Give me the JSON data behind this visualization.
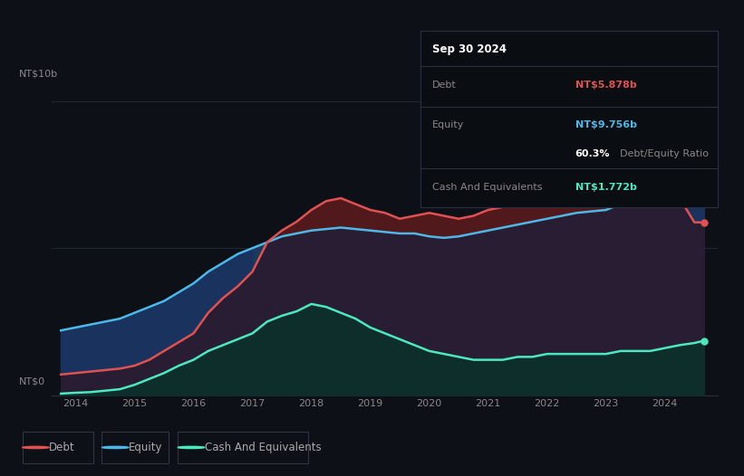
{
  "background_color": "#0d1117",
  "debt_color": "#e05252",
  "equity_color": "#4db8e8",
  "cash_color": "#4de8c0",
  "ylabel": "NT$10b",
  "y0label": "NT$0",
  "ylim": [
    0,
    11.5
  ],
  "tooltip_title": "Sep 30 2024",
  "tooltip_debt_label": "Debt",
  "tooltip_debt_value": "NT$5.878b",
  "tooltip_equity_label": "Equity",
  "tooltip_equity_value": "NT$9.756b",
  "tooltip_ratio": "60.3%",
  "tooltip_ratio_label": "Debt/Equity Ratio",
  "tooltip_cash_label": "Cash And Equivalents",
  "tooltip_cash_value": "NT$1.772b",
  "years": [
    2013.75,
    2014.0,
    2014.25,
    2014.5,
    2014.75,
    2015.0,
    2015.25,
    2015.5,
    2015.75,
    2016.0,
    2016.25,
    2016.5,
    2016.75,
    2017.0,
    2017.25,
    2017.5,
    2017.75,
    2018.0,
    2018.25,
    2018.5,
    2018.75,
    2019.0,
    2019.25,
    2019.5,
    2019.75,
    2020.0,
    2020.25,
    2020.5,
    2020.75,
    2021.0,
    2021.25,
    2021.5,
    2021.75,
    2022.0,
    2022.25,
    2022.5,
    2022.75,
    2023.0,
    2023.25,
    2023.5,
    2023.75,
    2024.0,
    2024.25,
    2024.5,
    2024.66
  ],
  "equity": [
    2.2,
    2.3,
    2.4,
    2.5,
    2.6,
    2.8,
    3.0,
    3.2,
    3.5,
    3.8,
    4.2,
    4.5,
    4.8,
    5.0,
    5.2,
    5.4,
    5.5,
    5.6,
    5.65,
    5.7,
    5.65,
    5.6,
    5.55,
    5.5,
    5.5,
    5.4,
    5.35,
    5.4,
    5.5,
    5.6,
    5.7,
    5.8,
    5.9,
    6.0,
    6.1,
    6.2,
    6.25,
    6.3,
    6.5,
    6.7,
    6.9,
    7.2,
    7.5,
    9.756,
    10.9
  ],
  "debt": [
    0.7,
    0.75,
    0.8,
    0.85,
    0.9,
    1.0,
    1.2,
    1.5,
    1.8,
    2.1,
    2.8,
    3.3,
    3.7,
    4.2,
    5.2,
    5.6,
    5.9,
    6.3,
    6.6,
    6.7,
    6.5,
    6.3,
    6.2,
    6.0,
    6.1,
    6.2,
    6.1,
    6.0,
    6.1,
    6.3,
    6.4,
    6.5,
    6.6,
    6.7,
    6.8,
    6.9,
    6.8,
    6.7,
    6.9,
    7.0,
    7.0,
    6.8,
    6.7,
    5.878,
    5.878
  ],
  "cash": [
    0.05,
    0.08,
    0.1,
    0.15,
    0.2,
    0.35,
    0.55,
    0.75,
    1.0,
    1.2,
    1.5,
    1.7,
    1.9,
    2.1,
    2.5,
    2.7,
    2.85,
    3.1,
    3.0,
    2.8,
    2.6,
    2.3,
    2.1,
    1.9,
    1.7,
    1.5,
    1.4,
    1.3,
    1.2,
    1.2,
    1.2,
    1.3,
    1.3,
    1.4,
    1.4,
    1.4,
    1.4,
    1.4,
    1.5,
    1.5,
    1.5,
    1.6,
    1.7,
    1.772,
    1.85
  ],
  "legend_items": [
    {
      "label": "Debt",
      "color": "#e05252"
    },
    {
      "label": "Equity",
      "color": "#4db8e8"
    },
    {
      "label": "Cash And Equivalents",
      "color": "#4de8c0"
    }
  ],
  "xticks": [
    2014,
    2015,
    2016,
    2017,
    2018,
    2019,
    2020,
    2021,
    2022,
    2023,
    2024
  ]
}
